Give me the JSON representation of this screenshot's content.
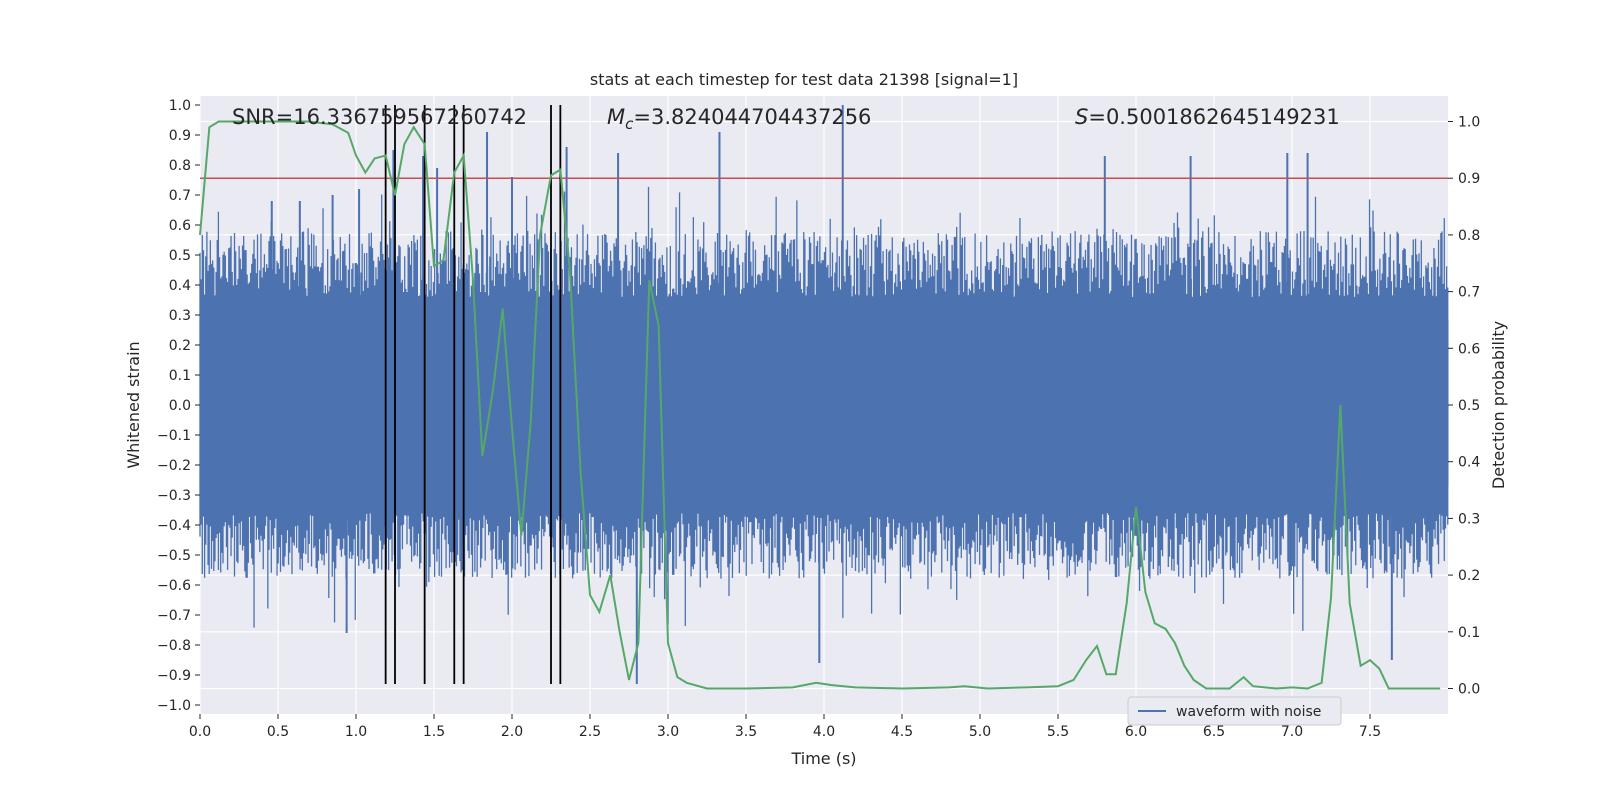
{
  "chart_data": {
    "type": "line",
    "title": "stats at each timestep for test data 21398 [signal=1]",
    "xlabel": "Time (s)",
    "ylabel": "Whitened strain",
    "ylabel_right": "Detection probability",
    "xlim": [
      0,
      8
    ],
    "ylim": [
      -1.03,
      1.03
    ],
    "ylim_right": [
      -0.045,
      1.045
    ],
    "x_ticks": [
      "0.0",
      "0.5",
      "1.0",
      "1.5",
      "2.0",
      "2.5",
      "3.0",
      "3.5",
      "4.0",
      "4.5",
      "5.0",
      "5.5",
      "6.0",
      "6.5",
      "7.0",
      "7.5"
    ],
    "y_ticks": [
      "1.0",
      "0.9",
      "0.8",
      "0.7",
      "0.6",
      "0.5",
      "0.4",
      "0.3",
      "0.2",
      "0.1",
      "0.0",
      "-0.1",
      "-0.2",
      "-0.3",
      "-0.4",
      "-0.5",
      "-0.6",
      "-0.7",
      "-0.8",
      "-0.9",
      "-1.0"
    ],
    "y_ticks_right": [
      "1.0",
      "0.9",
      "0.8",
      "0.7",
      "0.6",
      "0.5",
      "0.4",
      "0.3",
      "0.2",
      "0.1",
      "0.0"
    ],
    "annotations": {
      "snr": "SNR=16.336759567260742",
      "mc_symbol": "M",
      "mc_sub": "c",
      "mc_value": "=3.824044704437256",
      "s_symbol": "S",
      "s_value": "=0.5001862645149231"
    },
    "legend": {
      "label": "waveform with noise",
      "placement": "lower-right"
    },
    "grid": true,
    "colors": {
      "waveform": "#4c72b0",
      "probability": "#55a868",
      "threshold": "#c44e52",
      "markers": "#000000",
      "background": "#eaeaf2"
    },
    "threshold_prob": 0.9,
    "vertical_markers": [
      1.19,
      1.25,
      1.44,
      1.63,
      1.69,
      2.25,
      2.31
    ],
    "waveform": {
      "description": "whitened strain with noise, roughly uniform amplitude",
      "peaks": [
        {
          "x": 0.46,
          "y": 0.68
        },
        {
          "x": 0.64,
          "y": 0.68
        },
        {
          "x": 0.85,
          "y": 0.7
        },
        {
          "x": 0.94,
          "y": -0.76
        },
        {
          "x": 1.02,
          "y": 0.72
        },
        {
          "x": 1.24,
          "y": 0.85
        },
        {
          "x": 1.43,
          "y": 0.83
        },
        {
          "x": 1.52,
          "y": 0.79
        },
        {
          "x": 1.84,
          "y": 0.91
        },
        {
          "x": 2.0,
          "y": 0.76
        },
        {
          "x": 2.35,
          "y": 0.86
        },
        {
          "x": 2.68,
          "y": 0.84
        },
        {
          "x": 2.8,
          "y": -0.93
        },
        {
          "x": 3.33,
          "y": 0.91
        },
        {
          "x": 3.97,
          "y": -0.86
        },
        {
          "x": 4.12,
          "y": 1.0
        },
        {
          "x": 5.8,
          "y": 0.83
        },
        {
          "x": 6.35,
          "y": 0.83
        },
        {
          "x": 6.97,
          "y": 0.84
        },
        {
          "x": 7.1,
          "y": 0.84
        },
        {
          "x": 7.64,
          "y": -0.85
        }
      ]
    },
    "probability": {
      "x": [
        0.0,
        0.06,
        0.12,
        0.2,
        0.3,
        0.5,
        0.7,
        0.85,
        0.95,
        1.0,
        1.06,
        1.12,
        1.19,
        1.25,
        1.31,
        1.37,
        1.44,
        1.5,
        1.56,
        1.63,
        1.69,
        1.75,
        1.81,
        1.88,
        1.94,
        2.0,
        2.06,
        2.12,
        2.18,
        2.25,
        2.31,
        2.37,
        2.44,
        2.5,
        2.56,
        2.63,
        2.69,
        2.75,
        2.81,
        2.88,
        2.94,
        3.0,
        3.06,
        3.12,
        3.25,
        3.5,
        3.8,
        3.95,
        4.05,
        4.2,
        4.5,
        4.8,
        4.9,
        5.05,
        5.3,
        5.5,
        5.6,
        5.68,
        5.75,
        5.81,
        5.87,
        5.94,
        6.0,
        6.06,
        6.12,
        6.19,
        6.25,
        6.31,
        6.37,
        6.45,
        6.6,
        6.69,
        6.75,
        6.9,
        7.0,
        7.1,
        7.19,
        7.25,
        7.31,
        7.37,
        7.44,
        7.5,
        7.56,
        7.62,
        7.7,
        7.95
      ],
      "y": [
        0.8,
        0.99,
        1.0,
        1.0,
        1.0,
        1.0,
        1.0,
        0.995,
        0.98,
        0.94,
        0.91,
        0.935,
        0.94,
        0.87,
        0.96,
        0.99,
        0.96,
        0.745,
        0.755,
        0.91,
        0.94,
        0.72,
        0.41,
        0.53,
        0.67,
        0.46,
        0.27,
        0.47,
        0.8,
        0.905,
        0.915,
        0.74,
        0.38,
        0.165,
        0.135,
        0.2,
        0.1,
        0.015,
        0.08,
        0.72,
        0.64,
        0.08,
        0.02,
        0.01,
        0.0,
        0.0,
        0.002,
        0.01,
        0.006,
        0.002,
        0.0,
        0.002,
        0.004,
        0.0,
        0.002,
        0.004,
        0.015,
        0.05,
        0.075,
        0.025,
        0.025,
        0.15,
        0.32,
        0.17,
        0.115,
        0.105,
        0.08,
        0.04,
        0.015,
        0.0,
        0.0,
        0.02,
        0.004,
        0.0,
        0.002,
        0.0,
        0.01,
        0.16,
        0.5,
        0.15,
        0.04,
        0.05,
        0.035,
        0.0,
        0.0,
        0.0
      ]
    }
  }
}
